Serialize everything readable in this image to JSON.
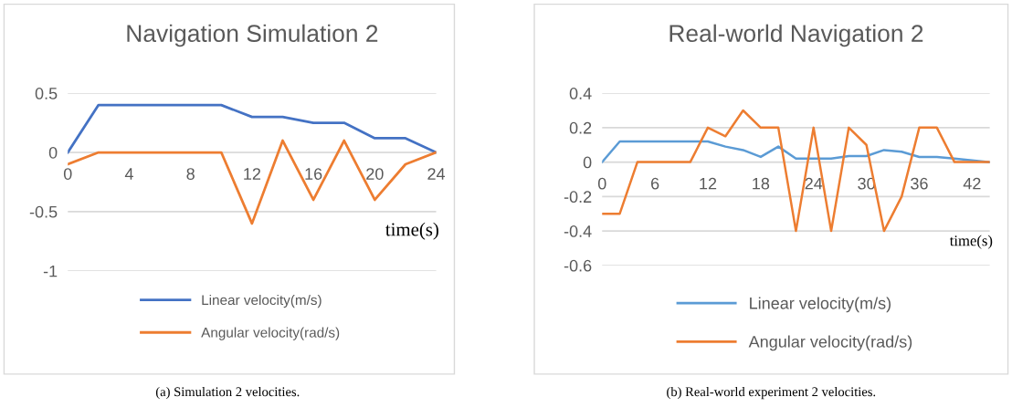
{
  "chart_data": [
    {
      "type": "line",
      "title": "Navigation Simulation 2",
      "xlabel": "time(s)",
      "x": [
        0,
        2,
        4,
        6,
        8,
        10,
        12,
        14,
        16,
        18,
        20,
        22,
        24
      ],
      "series": [
        {
          "name": "Linear velocity(m/s)",
          "color": "#4472c4",
          "values": [
            0,
            0.4,
            0.4,
            0.4,
            0.4,
            0.4,
            0.3,
            0.3,
            0.25,
            0.25,
            0.12,
            0.12,
            0
          ]
        },
        {
          "name": "Angular velocity(rad/s)",
          "color": "#ed7d31",
          "values": [
            -0.1,
            0,
            0,
            0,
            0,
            0,
            -0.6,
            0.1,
            -0.4,
            0.1,
            -0.4,
            -0.1,
            0
          ]
        }
      ],
      "xlim": [
        0,
        24
      ],
      "xticks": [
        0,
        4,
        8,
        12,
        16,
        20,
        24
      ],
      "ylim": [
        -1,
        0.5
      ],
      "yticks": [
        {
          "value": -1,
          "label": "-1"
        },
        {
          "value": -0.5,
          "label": "-0.5"
        },
        0,
        0.5
      ],
      "grid": "y",
      "legend": "bottom",
      "annotations": [
        "(a) Simulation 2 velocities."
      ]
    },
    {
      "type": "line",
      "title": "Real-world Navigation 2",
      "xlabel": "time(s)",
      "x": [
        0,
        2,
        4,
        6,
        8,
        10,
        12,
        14,
        16,
        18,
        20,
        22,
        24,
        26,
        28,
        30,
        32,
        34,
        36,
        38,
        40,
        42,
        44
      ],
      "series": [
        {
          "name": "Linear velocity(m/s)",
          "color": "#5b9bd5",
          "values": [
            0,
            0.12,
            0.12,
            0.12,
            0.12,
            0.12,
            0.12,
            0.09,
            0.07,
            0.03,
            0.09,
            0.02,
            0.02,
            0.02,
            0.035,
            0.035,
            0.07,
            0.06,
            0.03,
            0.03,
            0.02,
            0.01,
            0
          ]
        },
        {
          "name": "Angular velocity(rad/s)",
          "color": "#ed7d31",
          "values": [
            -0.3,
            -0.3,
            0,
            0,
            0,
            0,
            0.2,
            0.15,
            0.3,
            0.2,
            0.2,
            -0.4,
            0.2,
            -0.4,
            0.2,
            0.1,
            -0.4,
            -0.2,
            0.2,
            0.2,
            0,
            0,
            0
          ]
        }
      ],
      "xlim": [
        0,
        44
      ],
      "xticks": [
        0,
        6,
        12,
        18,
        24,
        30,
        36,
        42
      ],
      "ylim": [
        -0.6,
        0.4
      ],
      "yticks": [
        {
          "value": -0.6,
          "label": "-0.6"
        },
        {
          "value": -0.4,
          "label": "-0.4"
        },
        {
          "value": -0.2,
          "label": "-0.2"
        },
        0,
        0.2,
        0.4
      ],
      "grid": "y",
      "legend": "bottom",
      "annotations": [
        "(b) Real-world experiment 2 velocities."
      ]
    }
  ]
}
